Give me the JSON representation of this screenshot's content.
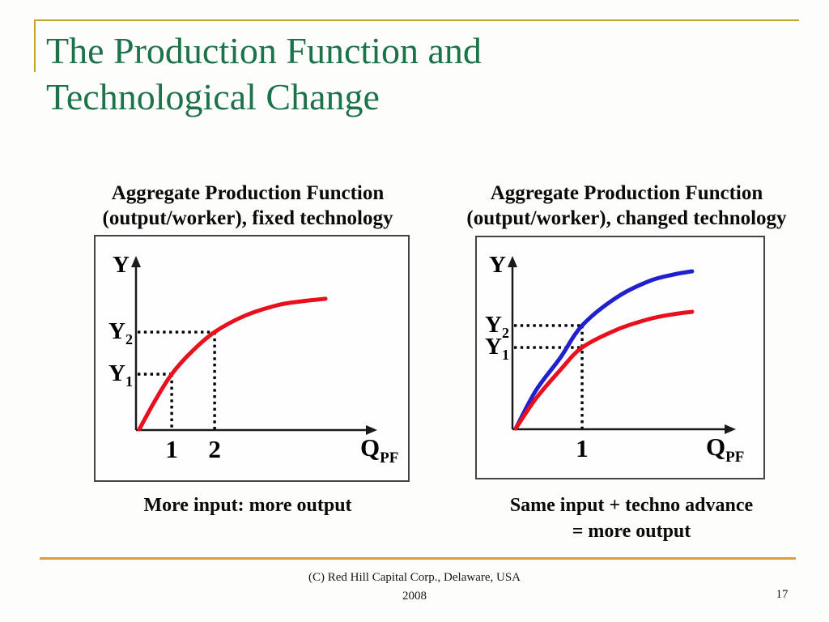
{
  "slide": {
    "title_line1": "The Production Function and",
    "title_line2": "Technological Change",
    "title_color": "#1C7249",
    "accent_color_top": "#C9A22C",
    "accent_color_bottom": "#D4A431",
    "background_color": "#FDFDFB"
  },
  "footer": {
    "copyright": "(C) Red Hill Capital Corp., Delaware, USA",
    "year": "2008",
    "page_number": "17"
  },
  "chart_data": [
    {
      "type": "line",
      "title_lines": [
        "Aggregate Production Function",
        "(output/worker), fixed technology"
      ],
      "caption_lines": [
        "More input: more output"
      ],
      "y_axis_label": "Y",
      "x_axis_label_main": "Q",
      "x_axis_label_sub": "PF",
      "axis_color": "#1a1a1a",
      "guide_color": "#000000",
      "x_ticks": [
        {
          "label": "1",
          "pos": 0.149
        },
        {
          "label": "2",
          "pos": 0.328
        }
      ],
      "y_marks": [
        {
          "label_main": "Y",
          "label_sub": "2",
          "level": 0.568,
          "meet_x": 0.328
        },
        {
          "label_main": "Y",
          "label_sub": "1",
          "level": 0.324,
          "meet_x": 0.149
        }
      ],
      "series": [
        {
          "name": "output per worker, fixed technology",
          "color": "#E8101C",
          "points": [
            [
              0.014,
              0.005
            ],
            [
              0.081,
              0.174
            ],
            [
              0.149,
              0.324
            ],
            [
              0.233,
              0.455
            ],
            [
              0.328,
              0.568
            ],
            [
              0.453,
              0.662
            ],
            [
              0.588,
              0.723
            ],
            [
              0.689,
              0.746
            ],
            [
              0.791,
              0.761
            ]
          ]
        }
      ]
    },
    {
      "type": "line",
      "title_lines": [
        "Aggregate Production Function",
        "(output/worker), changed technology"
      ],
      "caption_lines": [
        "Same input + techno advance",
        "= more output"
      ],
      "y_axis_label": "Y",
      "x_axis_label_main": "Q",
      "x_axis_label_sub": "PF",
      "axis_color": "#1a1a1a",
      "guide_color": "#000000",
      "x_ticks": [
        {
          "label": "1",
          "pos": 0.314
        }
      ],
      "y_marks": [
        {
          "label_main": "Y",
          "label_sub": "2",
          "level": 0.604,
          "meet_x": 0.314
        },
        {
          "label_main": "Y",
          "label_sub": "1",
          "level": 0.476,
          "meet_x": 0.314
        }
      ],
      "series": [
        {
          "name": "output per worker, changed technology",
          "color": "#2020CF",
          "points": [
            [
              0.015,
              0.005
            ],
            [
              0.106,
              0.226
            ],
            [
              0.215,
              0.415
            ],
            [
              0.314,
              0.604
            ],
            [
              0.471,
              0.769
            ],
            [
              0.617,
              0.863
            ],
            [
              0.726,
              0.901
            ],
            [
              0.81,
              0.92
            ]
          ]
        },
        {
          "name": "output per worker, original technology",
          "color": "#E8101C",
          "points": [
            [
              0.015,
              0.005
            ],
            [
              0.106,
              0.179
            ],
            [
              0.215,
              0.344
            ],
            [
              0.314,
              0.476
            ],
            [
              0.471,
              0.58
            ],
            [
              0.617,
              0.642
            ],
            [
              0.726,
              0.67
            ],
            [
              0.81,
              0.684
            ]
          ]
        }
      ]
    }
  ]
}
